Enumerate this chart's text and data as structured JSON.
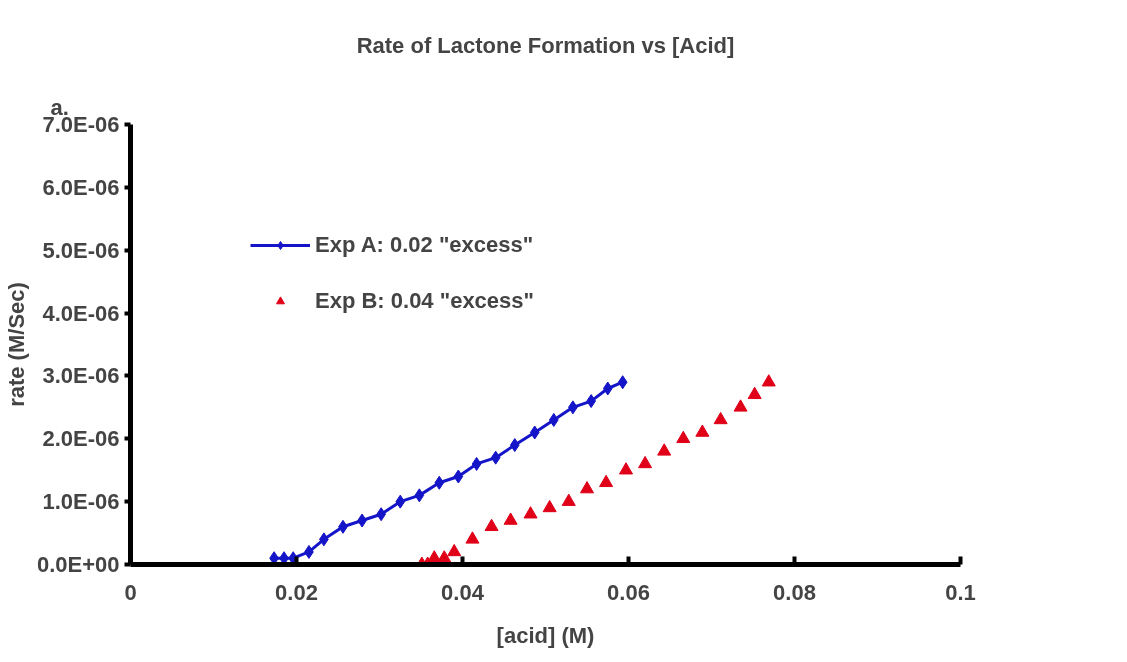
{
  "chart_data": {
    "type": "scatter",
    "title": "Rate of Lactone Formation vs [Acid]",
    "xlabel": "[acid] (M)",
    "ylabel": "rate (M/Sec)",
    "annotations": [
      "a."
    ],
    "xlim": [
      0,
      0.1
    ],
    "xticks": [
      0,
      0.02,
      0.04,
      0.06,
      0.08,
      0.1
    ],
    "ylim": [
      0,
      7e-06
    ],
    "yticks": [
      {
        "value": 0,
        "label": "0.0E+00"
      },
      {
        "value": 1e-06,
        "label": "1.0E-06"
      },
      {
        "value": 2e-06,
        "label": "2.0E-06"
      },
      {
        "value": 3e-06,
        "label": "3.0E-06"
      },
      {
        "value": 4e-06,
        "label": "4.0E-06"
      },
      {
        "value": 5e-06,
        "label": "5.0E-06"
      },
      {
        "value": 6e-06,
        "label": "6.0E-06"
      },
      {
        "value": 7e-06,
        "label": "7.0E-06"
      }
    ],
    "grid": false,
    "legend": "top left",
    "series": [
      {
        "name": "Exp A: 0.02 \"excess\"",
        "type": "line",
        "marker": "diamond",
        "color": "#1414c8",
        "x": [
          0.0173,
          0.0185,
          0.0196,
          0.0215,
          0.0233,
          0.0256,
          0.0279,
          0.0302,
          0.0325,
          0.0348,
          0.0372,
          0.0395,
          0.0417,
          0.044,
          0.0463,
          0.0487,
          0.051,
          0.0533,
          0.0555,
          0.0575,
          0.0593
        ],
        "values": [
          1e-07,
          1e-07,
          1e-07,
          2e-07,
          4e-07,
          6e-07,
          7e-07,
          8e-07,
          1e-06,
          1.1e-06,
          1.3e-06,
          1.4e-06,
          1.6e-06,
          1.7e-06,
          1.9e-06,
          2.1e-06,
          2.3e-06,
          2.5e-06,
          2.6e-06,
          2.8e-06,
          2.9e-06
        ]
      },
      {
        "name": "Exp B: 0.04 \"excess\"",
        "marker": "triangle",
        "color": "#e00018",
        "x": [
          0.0351,
          0.0358,
          0.0366,
          0.0378,
          0.039,
          0.0412,
          0.0435,
          0.0458,
          0.0482,
          0.0505,
          0.0528,
          0.055,
          0.0573,
          0.0597,
          0.062,
          0.0643,
          0.0666,
          0.0689,
          0.0711,
          0.0735,
          0.0752,
          0.0769
        ],
        "values": [
          0,
          0,
          1e-07,
          1e-07,
          2e-07,
          4e-07,
          6e-07,
          7e-07,
          8e-07,
          9e-07,
          1e-06,
          1.2e-06,
          1.3e-06,
          1.5e-06,
          1.6e-06,
          1.8e-06,
          2e-06,
          2.1e-06,
          2.3e-06,
          2.5e-06,
          2.7e-06,
          2.9e-06
        ]
      }
    ]
  }
}
